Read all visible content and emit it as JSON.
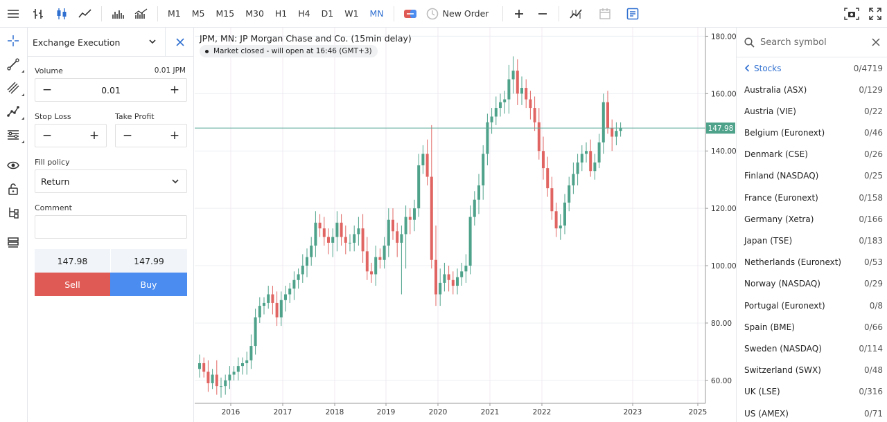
{
  "toolbar": {
    "timeframes": [
      "M1",
      "M5",
      "M15",
      "M30",
      "H1",
      "H4",
      "D1",
      "W1",
      "MN"
    ],
    "active_timeframe": "MN",
    "new_order_label": "New Order"
  },
  "order_panel": {
    "type_label": "Exchange Execution",
    "volume_label": "Volume",
    "volume_unit": "0.01 JPM",
    "volume_value": "0.01",
    "stop_loss_label": "Stop Loss",
    "take_profit_label": "Take Profit",
    "fill_policy_label": "Fill policy",
    "fill_policy_value": "Return",
    "comment_label": "Comment",
    "bid": "147.98",
    "ask": "147.99",
    "sell_label": "Sell",
    "buy_label": "Buy",
    "sell_color": "#e05a55",
    "buy_color": "#4a8cf0"
  },
  "chart": {
    "title": "JPM, MN: JP Morgan Chase and Co. (15min delay)",
    "market_status": "Market closed - will open at 16:46 (GMT+3)",
    "current_price_label": "147.98",
    "current_price": 147.98,
    "up_color": "#4ea28a",
    "down_color": "#e06562"
  },
  "chart_data": {
    "type": "candlestick",
    "title": "JPM, MN: JP Morgan Chase and Co. (15min delay)",
    "x_ticks": [
      "2016",
      "2017",
      "2018",
      "2019",
      "2020",
      "2021",
      "2022",
      "2023",
      "2025"
    ],
    "y_ticks": [
      "180.00",
      "160.00",
      "140.00",
      "120.00",
      "100.00",
      "80.00",
      "60.00"
    ],
    "ylim": [
      52,
      183
    ],
    "closes": [
      66,
      63,
      59,
      62,
      58,
      58,
      60,
      62,
      63,
      65,
      66,
      67,
      72,
      82,
      86,
      87,
      90,
      87,
      82,
      88,
      90,
      92,
      95,
      97,
      100,
      103,
      107,
      115,
      113,
      110,
      108,
      110,
      115,
      110,
      108,
      108,
      111,
      113,
      105,
      98,
      97,
      103,
      102,
      107,
      116,
      112,
      108,
      111,
      117,
      116,
      120,
      135,
      139,
      131,
      102,
      90,
      94,
      97,
      95,
      93,
      96,
      98,
      100,
      117,
      123,
      128,
      139,
      150,
      152,
      155,
      157,
      158,
      165,
      168,
      160,
      162,
      158,
      155,
      150,
      140,
      134,
      127,
      119,
      113,
      114,
      122,
      128,
      132,
      136,
      139,
      140,
      133,
      136,
      143,
      157,
      148,
      145,
      147,
      147.98
    ],
    "low": 52,
    "high": 173
  },
  "watchlist": {
    "search_placeholder": "Search symbol",
    "group_label": "Stocks",
    "group_count": "0/4719",
    "items": [
      {
        "name": "Australia (ASX)",
        "count": "0/129"
      },
      {
        "name": "Austria (VIE)",
        "count": "0/22"
      },
      {
        "name": "Belgium (Euronext)",
        "count": "0/46"
      },
      {
        "name": "Denmark (CSE)",
        "count": "0/26"
      },
      {
        "name": "Finland (NASDAQ)",
        "count": "0/25"
      },
      {
        "name": "France (Euronext)",
        "count": "0/158"
      },
      {
        "name": "Germany (Xetra)",
        "count": "0/166"
      },
      {
        "name": "Japan (TSE)",
        "count": "0/183"
      },
      {
        "name": "Netherlands (Euronext)",
        "count": "0/53"
      },
      {
        "name": "Norway (NASDAQ)",
        "count": "0/29"
      },
      {
        "name": "Portugal (Euronext)",
        "count": "0/8"
      },
      {
        "name": "Spain (BME)",
        "count": "0/66"
      },
      {
        "name": "Sweden (NASDAQ)",
        "count": "0/114"
      },
      {
        "name": "Switzerland (SWX)",
        "count": "0/48"
      },
      {
        "name": "UK (LSE)",
        "count": "0/316"
      },
      {
        "name": "US (AMEX)",
        "count": "0/71"
      }
    ]
  }
}
